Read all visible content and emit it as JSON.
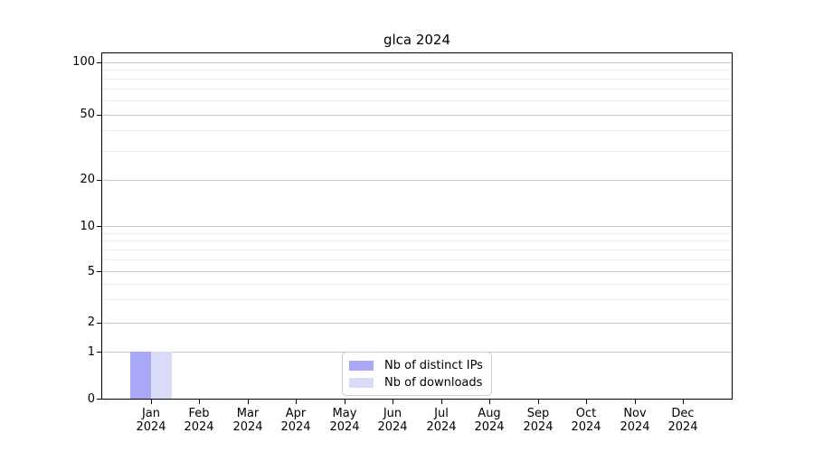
{
  "chart": {
    "type": "bar",
    "title": "glca 2024",
    "x_tick_months": [
      "Jan",
      "Feb",
      "Mar",
      "Apr",
      "May",
      "Jun",
      "Jul",
      "Aug",
      "Sep",
      "Oct",
      "Nov",
      "Dec"
    ],
    "x_tick_year": "2024",
    "y_ticks_major": [
      0,
      1,
      2,
      5,
      10,
      20,
      50,
      100
    ],
    "y_ticks_minor": [
      3,
      4,
      6,
      7,
      8,
      9,
      30,
      40,
      60,
      70,
      80,
      90
    ],
    "y_scale": "log-like (1-2-5 decades)",
    "ylim": [
      0,
      113
    ],
    "grid": true,
    "legend": {
      "position": "bottom-center",
      "entries": [
        "Nb of distinct IPs",
        "Nb of downloads"
      ]
    },
    "series": [
      {
        "name": "Nb of distinct IPs",
        "color": "#a9a9f8",
        "values": [
          1,
          0,
          0,
          0,
          0,
          0,
          0,
          0,
          0,
          0,
          0,
          0
        ]
      },
      {
        "name": "Nb of downloads",
        "color": "#dadaf9",
        "values": [
          1,
          0,
          0,
          0,
          0,
          0,
          0,
          0,
          0,
          0,
          0,
          0
        ]
      }
    ],
    "colors": {
      "major_grid": "#c9c9c9",
      "minor_grid": "#ebebeb",
      "axis": "#000000",
      "legend_border": "#cccccc",
      "text": "#000000",
      "background": "#ffffff"
    }
  }
}
